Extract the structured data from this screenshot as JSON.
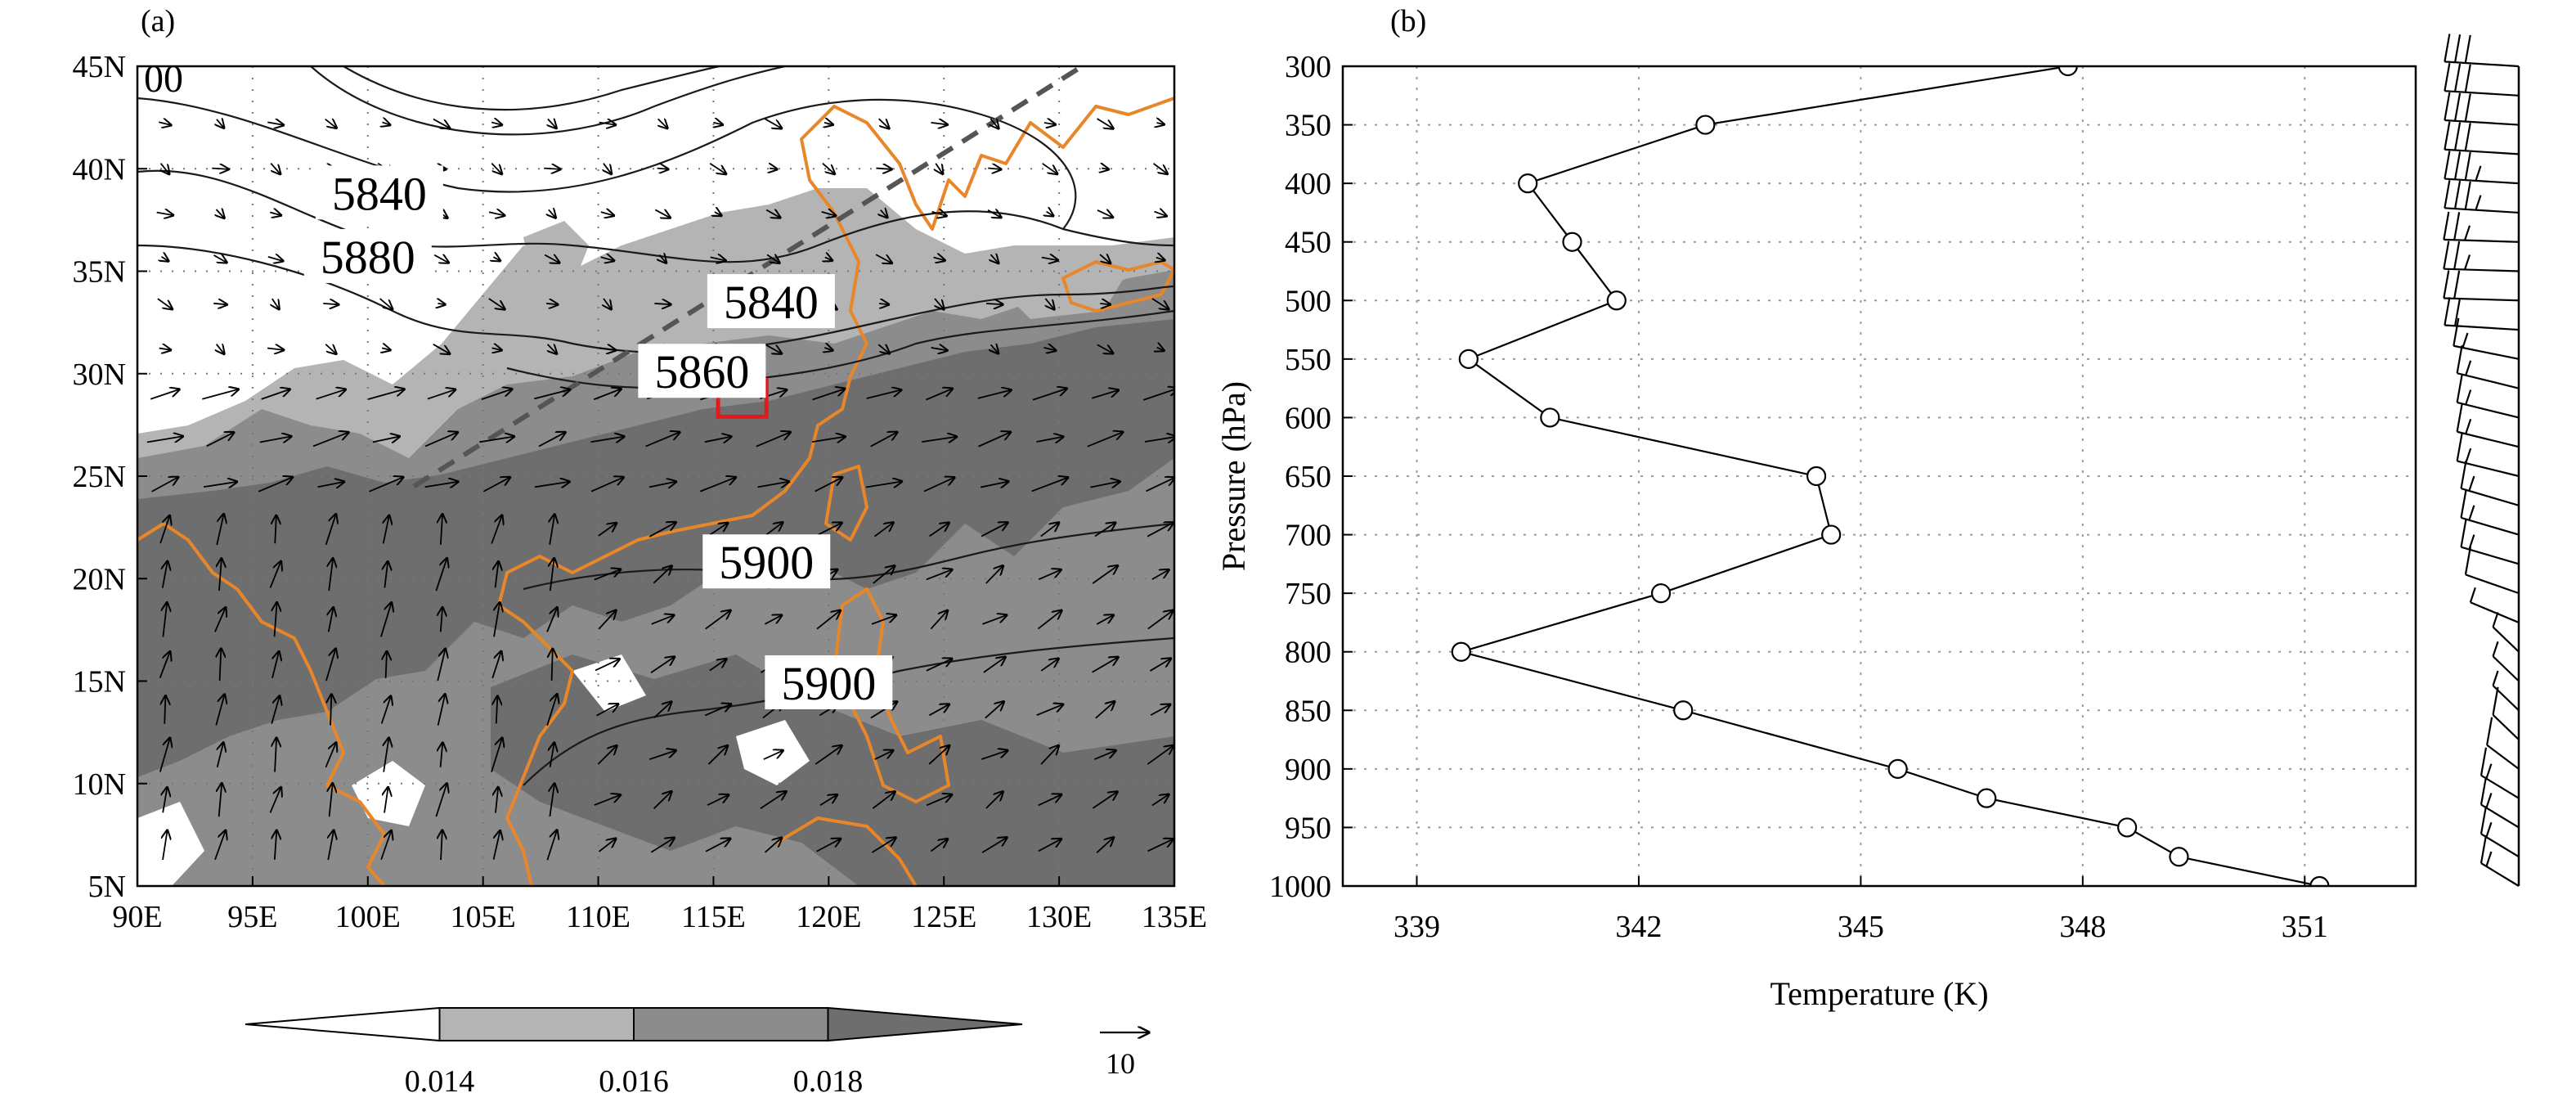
{
  "figure": {
    "panel_a_label": "(a)",
    "panel_b_label": "(b)"
  },
  "chart_data": [
    {
      "type": "heatmap",
      "panel": "(a)",
      "x_ticks": [
        "90E",
        "95E",
        "100E",
        "105E",
        "110E",
        "115E",
        "120E",
        "125E",
        "130E",
        "135E"
      ],
      "y_ticks": [
        "45N",
        "40N",
        "35N",
        "30N",
        "25N",
        "20N",
        "15N",
        "10N",
        "5N"
      ],
      "xlim": [
        90,
        135
      ],
      "ylim": [
        5,
        45
      ],
      "grid": true,
      "contour_labels": [
        {
          "text": "5840",
          "lon": 100.5,
          "lat": 38.8
        },
        {
          "text": "5880",
          "lon": 100,
          "lat": 35.7
        },
        {
          "text": "5840",
          "lon": 117.5,
          "lat": 33.5
        },
        {
          "text": "5860",
          "lon": 114.5,
          "lat": 30.1
        },
        {
          "text": "5900",
          "lon": 117.3,
          "lat": 20.8
        },
        {
          "text": "5900",
          "lon": 120,
          "lat": 14.9
        }
      ],
      "partial_label": "00",
      "colorbar": {
        "ticks": [
          "0.014",
          "0.016",
          "0.018"
        ],
        "colors": [
          "#ffffff",
          "#b4b4b4",
          "#8c8c8c",
          "#6e6e6e"
        ]
      },
      "reference_vector": "10",
      "highlight_box": {
        "lon": [
          115.2,
          117.3
        ],
        "lat": [
          27.9,
          29.7
        ],
        "color": "#e31a1c"
      },
      "trough_line": {
        "from": [
          102,
          24.5
        ],
        "to": [
          131,
          45
        ]
      },
      "colors": {
        "coast": "#e8862a",
        "contour": "#1a1a1a",
        "shade_light": "#b4b4b4",
        "shade_mid": "#8c8c8c",
        "shade_dark": "#6e6e6e"
      }
    },
    {
      "type": "line",
      "panel": "(b)",
      "xlabel": "Temperature (K)",
      "ylabel": "Pressure (hPa)",
      "xlim": [
        338,
        352.5
      ],
      "ylim": [
        1000,
        300
      ],
      "x_ticks": [
        "339",
        "342",
        "345",
        "348",
        "351"
      ],
      "y_ticks": [
        "300",
        "350",
        "400",
        "450",
        "500",
        "550",
        "600",
        "650",
        "700",
        "750",
        "800",
        "850",
        "900",
        "950",
        "1000"
      ],
      "grid": true,
      "series": [
        {
          "points": [
            {
              "p": 300,
              "t": 347.8
            },
            {
              "p": 350,
              "t": 342.9
            },
            {
              "p": 400,
              "t": 340.5
            },
            {
              "p": 450,
              "t": 341.1
            },
            {
              "p": 500,
              "t": 341.7
            },
            {
              "p": 550,
              "t": 339.7
            },
            {
              "p": 600,
              "t": 340.8
            },
            {
              "p": 650,
              "t": 344.4
            },
            {
              "p": 700,
              "t": 344.6
            },
            {
              "p": 750,
              "t": 342.3
            },
            {
              "p": 800,
              "t": 339.6
            },
            {
              "p": 850,
              "t": 342.6
            },
            {
              "p": 900,
              "t": 345.5
            },
            {
              "p": 925,
              "t": 346.7
            },
            {
              "p": 950,
              "t": 348.6
            },
            {
              "p": 975,
              "t": 349.3
            },
            {
              "p": 1000,
              "t": 351.2
            }
          ]
        }
      ],
      "wind_barbs": [
        {
          "p": 300,
          "dir": 80,
          "speed": 30
        },
        {
          "p": 325,
          "dir": 80,
          "speed": 30
        },
        {
          "p": 350,
          "dir": 80,
          "speed": 30
        },
        {
          "p": 375,
          "dir": 80,
          "speed": 30
        },
        {
          "p": 400,
          "dir": 80,
          "speed": 35
        },
        {
          "p": 425,
          "dir": 80,
          "speed": 35
        },
        {
          "p": 450,
          "dir": 85,
          "speed": 25
        },
        {
          "p": 475,
          "dir": 85,
          "speed": 25
        },
        {
          "p": 500,
          "dir": 85,
          "speed": 20
        },
        {
          "p": 525,
          "dir": 80,
          "speed": 20
        },
        {
          "p": 550,
          "dir": 60,
          "speed": 15
        },
        {
          "p": 575,
          "dir": 55,
          "speed": 15
        },
        {
          "p": 600,
          "dir": 55,
          "speed": 15
        },
        {
          "p": 625,
          "dir": 55,
          "speed": 15
        },
        {
          "p": 650,
          "dir": 55,
          "speed": 15
        },
        {
          "p": 675,
          "dir": 50,
          "speed": 15
        },
        {
          "p": 700,
          "dir": 50,
          "speed": 15
        },
        {
          "p": 725,
          "dir": 50,
          "speed": 15
        },
        {
          "p": 750,
          "dir": 45,
          "speed": 10
        },
        {
          "p": 775,
          "dir": 40,
          "speed": 5
        },
        {
          "p": 800,
          "dir": 20,
          "speed": 5
        },
        {
          "p": 825,
          "dir": 20,
          "speed": 5
        },
        {
          "p": 850,
          "dir": 20,
          "speed": 5
        },
        {
          "p": 875,
          "dir": 20,
          "speed": 10
        },
        {
          "p": 900,
          "dir": 25,
          "speed": 10
        },
        {
          "p": 925,
          "dir": 30,
          "speed": 15
        },
        {
          "p": 950,
          "dir": 30,
          "speed": 15
        },
        {
          "p": 975,
          "dir": 30,
          "speed": 15
        },
        {
          "p": 1000,
          "dir": 30,
          "speed": 15
        }
      ]
    }
  ]
}
